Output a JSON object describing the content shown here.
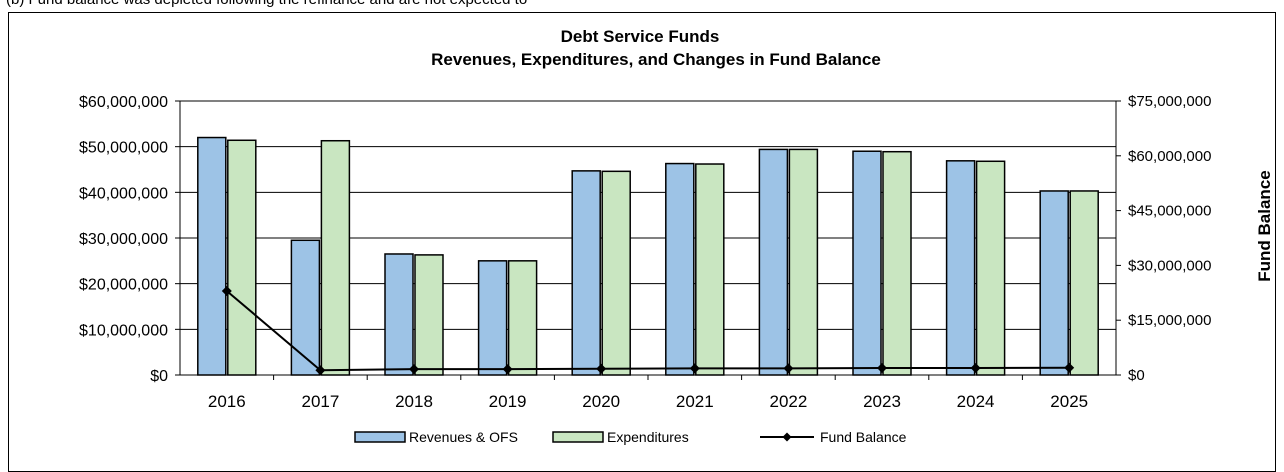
{
  "header_fragment": "(b) Fund balance was depleted following the refinance and are not expected to",
  "chart_data": {
    "type": "bar",
    "title": "Debt Service Funds",
    "subtitle": "Revenues, Expenditures, and Changes in Fund Balance",
    "categories": [
      "2016",
      "2017",
      "2018",
      "2019",
      "2020",
      "2021",
      "2022",
      "2023",
      "2024",
      "2025"
    ],
    "series": [
      {
        "name": "Revenues & OFS",
        "type": "bar",
        "axis": "left",
        "color": "#9dc3e6",
        "values": [
          52000000,
          29500000,
          26500000,
          25000000,
          44700000,
          46300000,
          49400000,
          49000000,
          46900000,
          40300000
        ]
      },
      {
        "name": "Expenditures",
        "type": "bar",
        "axis": "left",
        "color": "#c9e6c1",
        "values": [
          51400000,
          51300000,
          26300000,
          25000000,
          44600000,
          46200000,
          49400000,
          48900000,
          46800000,
          40300000
        ]
      },
      {
        "name": "Fund Balance",
        "type": "line",
        "axis": "right",
        "color": "#000000",
        "values": [
          23000000,
          1300000,
          1600000,
          1600000,
          1700000,
          1800000,
          1800000,
          1900000,
          1900000,
          2000000
        ]
      }
    ],
    "y_left": {
      "ylim": [
        0,
        60000000
      ],
      "ticks": [
        "$0",
        "$10,000,000",
        "$20,000,000",
        "$30,000,000",
        "$40,000,000",
        "$50,000,000",
        "$60,000,000"
      ]
    },
    "y_right": {
      "label": "Fund Balance",
      "ylim": [
        0,
        75000000
      ],
      "ticks": [
        "$0",
        "$15,000,000",
        "$30,000,000",
        "$45,000,000",
        "$60,000,000",
        "$75,000,000"
      ]
    },
    "grid": true,
    "legend_position": "bottom"
  }
}
